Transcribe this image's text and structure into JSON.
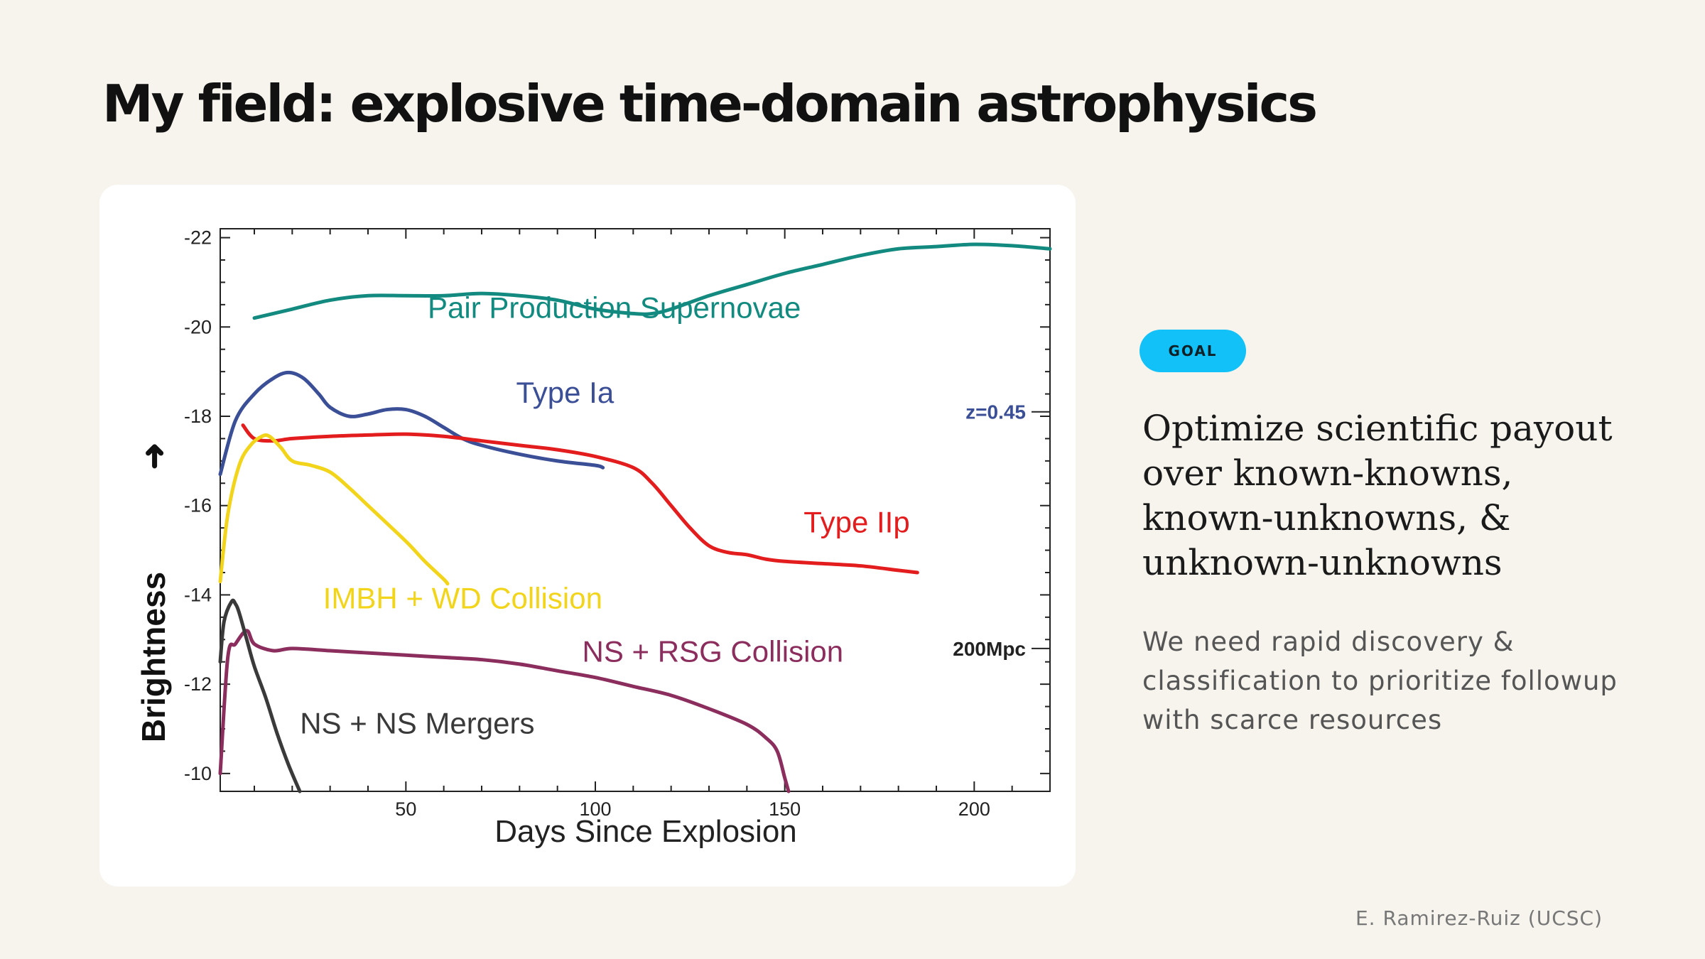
{
  "slide": {
    "title": "My field: explosive time-domain astrophysics",
    "badge": "GOAL",
    "headline": "Optimize scientific payout over known-knowns, known-unknowns, & unknown-unknowns",
    "body": "We need rapid discovery & classification to prioritize followup with scarce resources",
    "credit": "E. Ramirez-Ruiz (UCSC)",
    "badge_color": "#11c1f7"
  },
  "chart_data": {
    "type": "line",
    "xlabel": "Days Since Explosion",
    "ylabel": "Brightness",
    "xlim": [
      1,
      220
    ],
    "ylim": [
      -9.6,
      -22.2
    ],
    "x_ticks": [
      50,
      100,
      150,
      200
    ],
    "y_ticks": [
      -22,
      -20,
      -18,
      -16,
      -14,
      -12,
      -10
    ],
    "reference_lines": [
      {
        "label": "z=0.45",
        "y": -18.1,
        "color": "#3b4f97"
      },
      {
        "label": "200Mpc",
        "y": -12.8,
        "color": "#222222"
      }
    ],
    "series": [
      {
        "name": "Pair Production Supernovae",
        "color": "#138a80",
        "x": [
          10,
          20,
          30,
          40,
          50,
          60,
          70,
          80,
          90,
          100,
          110,
          115,
          120,
          130,
          140,
          150,
          160,
          170,
          180,
          190,
          200,
          210,
          220
        ],
        "y": [
          -20.2,
          -20.4,
          -20.6,
          -20.7,
          -20.7,
          -20.7,
          -20.75,
          -20.7,
          -20.6,
          -20.4,
          -20.3,
          -20.3,
          -20.4,
          -20.7,
          -20.95,
          -21.2,
          -21.4,
          -21.6,
          -21.75,
          -21.8,
          -21.85,
          -21.82,
          -21.75
        ]
      },
      {
        "name": "Type Ia",
        "color": "#3b4f97",
        "x": [
          1,
          5,
          10,
          15,
          19,
          23,
          27,
          30,
          35,
          40,
          45,
          50,
          55,
          60,
          65,
          70,
          80,
          90,
          100,
          102
        ],
        "y": [
          -16.7,
          -17.9,
          -18.5,
          -18.85,
          -18.98,
          -18.85,
          -18.5,
          -18.2,
          -18.0,
          -18.05,
          -18.15,
          -18.15,
          -18.0,
          -17.75,
          -17.5,
          -17.35,
          -17.15,
          -17.0,
          -16.9,
          -16.85
        ]
      },
      {
        "name": "Type IIp",
        "color": "#e31d1d",
        "x": [
          7,
          10,
          15,
          20,
          30,
          40,
          50,
          60,
          70,
          80,
          90,
          100,
          110,
          115,
          120,
          125,
          130,
          135,
          140,
          145,
          150,
          160,
          170,
          180,
          185
        ],
        "y": [
          -17.8,
          -17.5,
          -17.45,
          -17.5,
          -17.55,
          -17.58,
          -17.6,
          -17.55,
          -17.45,
          -17.35,
          -17.25,
          -17.1,
          -16.85,
          -16.5,
          -16.0,
          -15.5,
          -15.1,
          -14.95,
          -14.9,
          -14.8,
          -14.75,
          -14.7,
          -14.65,
          -14.55,
          -14.5
        ]
      },
      {
        "name": "IMBH + WD Collision",
        "color": "#f2d41a",
        "x": [
          1,
          3,
          6,
          9,
          12,
          14,
          17,
          20,
          25,
          30,
          35,
          40,
          50,
          55,
          60,
          61
        ],
        "y": [
          -14.3,
          -15.8,
          -16.9,
          -17.35,
          -17.55,
          -17.55,
          -17.3,
          -17.0,
          -16.9,
          -16.75,
          -16.4,
          -16.0,
          -15.2,
          -14.75,
          -14.35,
          -14.25
        ]
      },
      {
        "name": "NS + RSG Collision",
        "color": "#8b2e5e",
        "x": [
          1,
          3,
          5,
          8,
          10,
          15,
          20,
          30,
          40,
          50,
          60,
          70,
          80,
          90,
          100,
          110,
          120,
          130,
          140,
          145,
          148,
          150,
          151
        ],
        "y": [
          -10.0,
          -12.6,
          -12.9,
          -13.2,
          -12.9,
          -12.75,
          -12.8,
          -12.75,
          -12.7,
          -12.65,
          -12.6,
          -12.55,
          -12.45,
          -12.3,
          -12.15,
          -11.95,
          -11.75,
          -11.45,
          -11.1,
          -10.8,
          -10.5,
          -9.9,
          -9.6
        ]
      },
      {
        "name": "NS + NS Mergers",
        "color": "#3a3a3a",
        "x": [
          1,
          2,
          4,
          5,
          6,
          8,
          10,
          13,
          16,
          19,
          22
        ],
        "y": [
          -12.5,
          -13.4,
          -13.85,
          -13.8,
          -13.6,
          -13.0,
          -12.4,
          -11.7,
          -10.9,
          -10.2,
          -9.6
        ]
      }
    ],
    "annotations": [
      {
        "text": "Pair Production Supernovae",
        "x": 105,
        "y": -20.2,
        "color": "#138a80"
      },
      {
        "text": "Type Ia",
        "x": 92,
        "y": -18.3,
        "color": "#3b4f97"
      },
      {
        "text": "Type IIp",
        "x": 169,
        "y": -15.4,
        "color": "#e31d1d"
      },
      {
        "text": "IMBH + WD Collision",
        "x": 65,
        "y": -13.7,
        "color": "#f2d41a"
      },
      {
        "text": "NS + RSG Collision",
        "x": 131,
        "y": -12.5,
        "color": "#8b2e5e"
      },
      {
        "text": "NS + NS Mergers",
        "x": 53,
        "y": -10.9,
        "color": "#3a3a3a"
      }
    ]
  }
}
